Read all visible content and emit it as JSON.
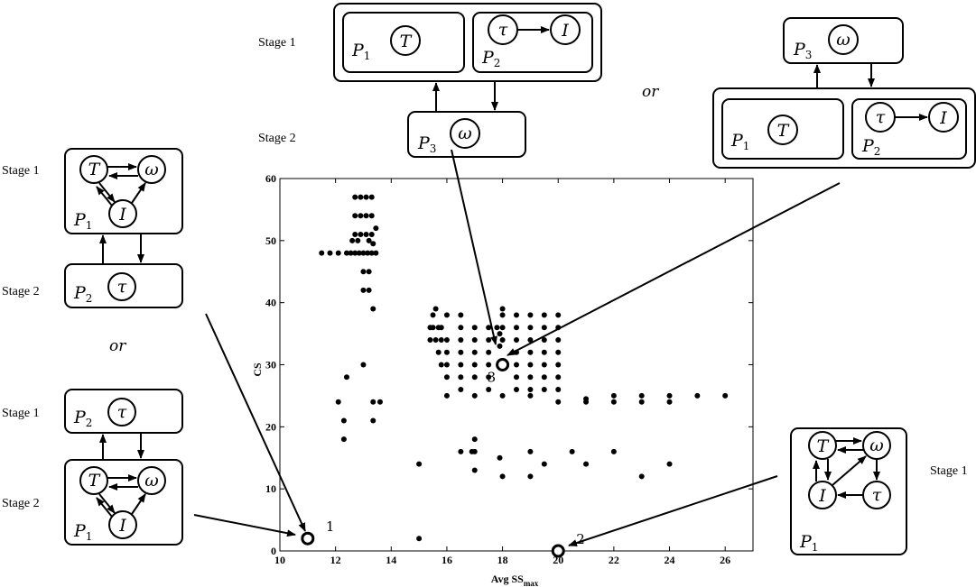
{
  "chart_data": {
    "type": "scatter",
    "xlabel": "Avg SS",
    "xlabel_sub": "max",
    "ylabel": "CS",
    "xlim": [
      10,
      27
    ],
    "ylim": [
      0,
      60
    ],
    "xticks": [
      10,
      12,
      14,
      16,
      18,
      20,
      22,
      24,
      26
    ],
    "yticks": [
      0,
      10,
      20,
      30,
      40,
      50,
      60
    ],
    "points": [
      [
        11.5,
        48
      ],
      [
        11.8,
        48
      ],
      [
        12.1,
        48
      ],
      [
        12.4,
        48
      ],
      [
        12.55,
        48
      ],
      [
        12.7,
        48
      ],
      [
        12.85,
        48
      ],
      [
        13.0,
        48
      ],
      [
        13.15,
        48
      ],
      [
        13.3,
        48
      ],
      [
        13.45,
        48
      ],
      [
        12.7,
        57
      ],
      [
        12.9,
        57
      ],
      [
        13.1,
        57
      ],
      [
        13.3,
        57
      ],
      [
        12.7,
        54
      ],
      [
        12.9,
        54
      ],
      [
        13.1,
        54
      ],
      [
        13.3,
        54
      ],
      [
        12.7,
        51
      ],
      [
        12.9,
        51
      ],
      [
        13.1,
        51
      ],
      [
        13.3,
        51
      ],
      [
        13.45,
        52
      ],
      [
        12.6,
        50
      ],
      [
        12.8,
        50
      ],
      [
        13.2,
        50
      ],
      [
        13.35,
        49.5
      ],
      [
        13.0,
        45
      ],
      [
        13.2,
        45
      ],
      [
        13.0,
        42
      ],
      [
        13.2,
        42
      ],
      [
        13.35,
        39
      ],
      [
        12.1,
        24
      ],
      [
        12.4,
        28
      ],
      [
        12.3,
        21
      ],
      [
        12.3,
        18
      ],
      [
        13.0,
        30
      ],
      [
        13.35,
        24
      ],
      [
        13.6,
        24
      ],
      [
        13.35,
        21
      ],
      [
        15.0,
        14
      ],
      [
        15.0,
        2
      ],
      [
        15.5,
        38
      ],
      [
        15.6,
        39
      ],
      [
        15.4,
        36
      ],
      [
        15.5,
        36
      ],
      [
        15.7,
        36
      ],
      [
        15.8,
        36
      ],
      [
        15.4,
        34
      ],
      [
        15.6,
        34
      ],
      [
        15.8,
        34
      ],
      [
        15.7,
        32
      ],
      [
        15.8,
        30
      ],
      [
        16.0,
        38
      ],
      [
        16.0,
        34
      ],
      [
        16.0,
        32
      ],
      [
        16.0,
        30
      ],
      [
        16.0,
        28
      ],
      [
        16.0,
        25
      ],
      [
        16.5,
        38
      ],
      [
        16.5,
        36
      ],
      [
        16.5,
        34
      ],
      [
        16.5,
        32
      ],
      [
        16.5,
        30
      ],
      [
        16.5,
        28
      ],
      [
        16.5,
        26
      ],
      [
        17.0,
        36
      ],
      [
        17.0,
        34
      ],
      [
        17.0,
        32
      ],
      [
        17.0,
        30
      ],
      [
        17.0,
        28
      ],
      [
        17.0,
        25
      ],
      [
        17.5,
        36
      ],
      [
        17.5,
        34
      ],
      [
        17.5,
        32
      ],
      [
        17.5,
        30
      ],
      [
        17.5,
        28
      ],
      [
        17.5,
        26
      ],
      [
        17.8,
        36
      ],
      [
        17.9,
        35
      ],
      [
        18.0,
        34
      ],
      [
        18.0,
        36
      ],
      [
        18.0,
        38
      ],
      [
        18.0,
        39
      ],
      [
        17.9,
        33
      ],
      [
        18.5,
        38
      ],
      [
        18.5,
        36
      ],
      [
        18.5,
        34
      ],
      [
        18.5,
        32
      ],
      [
        18.5,
        30
      ],
      [
        18.5,
        28
      ],
      [
        18.5,
        26
      ],
      [
        19.0,
        38
      ],
      [
        19.0,
        36
      ],
      [
        19.0,
        34
      ],
      [
        19.0,
        32
      ],
      [
        19.0,
        30
      ],
      [
        19.0,
        28
      ],
      [
        19.0,
        26
      ],
      [
        19.0,
        25
      ],
      [
        19.5,
        38
      ],
      [
        19.5,
        36
      ],
      [
        19.5,
        34
      ],
      [
        19.5,
        32
      ],
      [
        19.5,
        30
      ],
      [
        19.5,
        28
      ],
      [
        19.5,
        26
      ],
      [
        20.0,
        38
      ],
      [
        20.0,
        36
      ],
      [
        20.0,
        34
      ],
      [
        20.0,
        32
      ],
      [
        20.0,
        30
      ],
      [
        20.0,
        28
      ],
      [
        20.0,
        26
      ],
      [
        20.0,
        24
      ],
      [
        18.0,
        25
      ],
      [
        21.0,
        24
      ],
      [
        21.0,
        24.5
      ],
      [
        22.0,
        25
      ],
      [
        22.0,
        24
      ],
      [
        23.0,
        25
      ],
      [
        23.0,
        24
      ],
      [
        24.0,
        25
      ],
      [
        24.0,
        24
      ],
      [
        25.0,
        25
      ],
      [
        26.0,
        25
      ],
      [
        16.5,
        16
      ],
      [
        16.9,
        16
      ],
      [
        17.0,
        18
      ],
      [
        17.0,
        16
      ],
      [
        17.0,
        13
      ],
      [
        17.9,
        15
      ],
      [
        18.0,
        12
      ],
      [
        19.0,
        16
      ],
      [
        19.0,
        12
      ],
      [
        19.5,
        14
      ],
      [
        20.5,
        16
      ],
      [
        21.0,
        14
      ],
      [
        22.0,
        16
      ],
      [
        23.0,
        12
      ],
      [
        24.0,
        14
      ]
    ],
    "highlighted": [
      {
        "label": "1",
        "x": 11,
        "y": 2
      },
      {
        "label": "2",
        "x": 20,
        "y": 0
      },
      {
        "label": "3",
        "x": 18,
        "y": 30
      }
    ]
  },
  "annotations": {
    "stage1": "Stage 1",
    "stage2": "Stage 2",
    "or": "or",
    "P": "P",
    "sub1": "1",
    "sub2": "2",
    "sub3": "3",
    "T": "T",
    "I": "I",
    "tau": "τ",
    "omega": "ω"
  }
}
